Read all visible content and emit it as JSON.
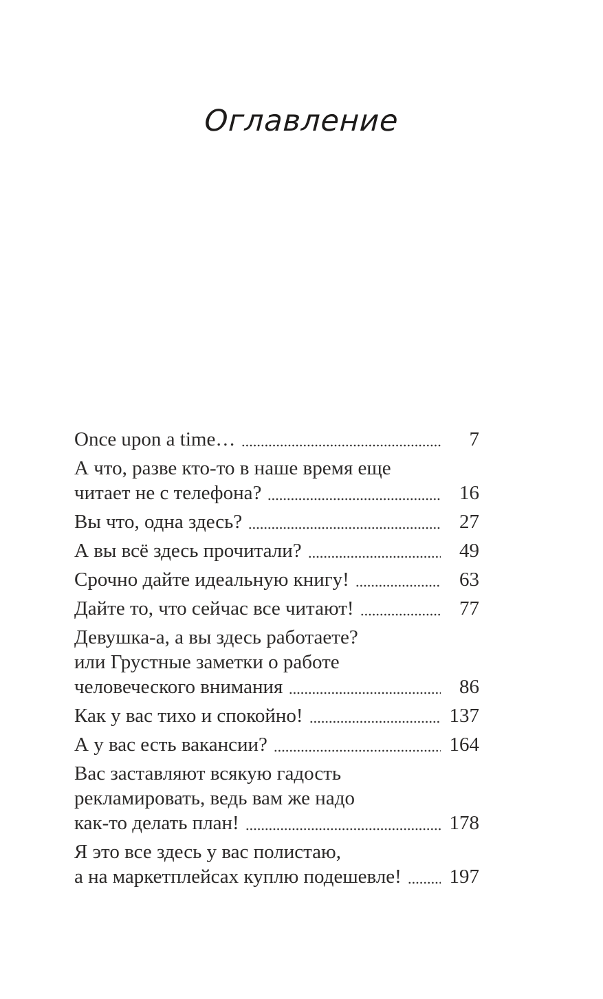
{
  "page": {
    "title": "Оглавление",
    "background_color": "#ffffff",
    "text_color": "#2c2a29",
    "dot_leader_color": "#2e2c2b"
  },
  "toc": {
    "entries": [
      {
        "lines": [
          "Once upon a time…"
        ],
        "page": "7"
      },
      {
        "lines": [
          "А что, разве кто-то в наше время еще",
          "читает не с телефона?"
        ],
        "page": "16"
      },
      {
        "lines": [
          "Вы что, одна здесь?"
        ],
        "page": "27"
      },
      {
        "lines": [
          "А вы всё здесь прочитали?"
        ],
        "page": "49"
      },
      {
        "lines": [
          "Срочно дайте идеальную книгу!"
        ],
        "page": "63"
      },
      {
        "lines": [
          "Дайте то, что сейчас все читают!"
        ],
        "page": "77"
      },
      {
        "lines": [
          "Девушка-а, а вы здесь работаете?",
          "или Грустные заметки о работе",
          "человеческого внимания"
        ],
        "page": "86"
      },
      {
        "lines": [
          "Как у вас тихо и спокойно!"
        ],
        "page": "137"
      },
      {
        "lines": [
          "А у вас есть вакансии?"
        ],
        "page": "164"
      },
      {
        "lines": [
          "Вас заставляют всякую гадость",
          "рекламировать, ведь вам же надо",
          "как-то делать план!"
        ],
        "page": "178"
      },
      {
        "lines": [
          "Я это все здесь у вас полистаю,",
          "а на маркетплейсах куплю подешевле!"
        ],
        "page": "197"
      }
    ]
  }
}
